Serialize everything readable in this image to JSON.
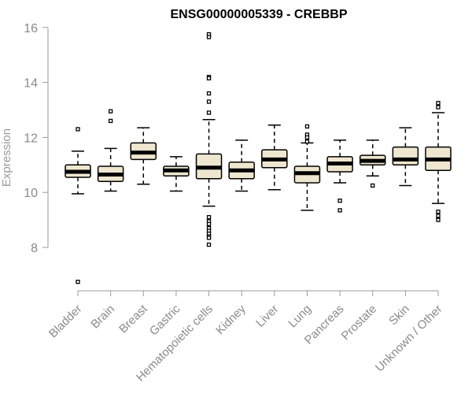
{
  "chart_data": {
    "type": "boxplot",
    "title": "ENSG00000005339 - CREBBP",
    "xlabel": "",
    "ylabel": "Expression",
    "ylim": [
      6.6,
      16.4
    ],
    "yticks": [
      8,
      10,
      12,
      14,
      16
    ],
    "colors": {
      "box_fill": "#efe6cf",
      "box_stroke": "#000000",
      "median": "#000000",
      "axis": "#9a9a9a",
      "text": "#8a8a8a"
    },
    "categories": [
      "Bladder",
      "Brain",
      "Breast",
      "Gastric",
      "Hematopoietic cells",
      "Kidney",
      "Liver",
      "Lung",
      "Pancreas",
      "Prostate",
      "Skin",
      "Unknown / Other"
    ],
    "boxes": [
      {
        "name": "Bladder",
        "whisker_low": 9.95,
        "q1": 10.55,
        "median": 10.75,
        "q3": 11.0,
        "whisker_high": 11.5,
        "outliers": [
          12.3,
          6.75
        ]
      },
      {
        "name": "Brain",
        "whisker_low": 10.05,
        "q1": 10.4,
        "median": 10.65,
        "q3": 10.95,
        "whisker_high": 11.6,
        "outliers": [
          12.95,
          12.6
        ]
      },
      {
        "name": "Breast",
        "whisker_low": 10.3,
        "q1": 11.2,
        "median": 11.45,
        "q3": 11.8,
        "whisker_high": 12.35,
        "outliers": []
      },
      {
        "name": "Gastric",
        "whisker_low": 10.05,
        "q1": 10.6,
        "median": 10.8,
        "q3": 10.95,
        "whisker_high": 11.3,
        "outliers": []
      },
      {
        "name": "Hematopoietic cells",
        "whisker_low": 9.5,
        "q1": 10.5,
        "median": 10.9,
        "q3": 11.4,
        "whisker_high": 12.65,
        "outliers": [
          15.75,
          15.65,
          14.2,
          14.15,
          13.6,
          13.3,
          12.9,
          9.1,
          8.95,
          8.85,
          8.7,
          8.6,
          8.5,
          8.4,
          8.35,
          8.1
        ]
      },
      {
        "name": "Kidney",
        "whisker_low": 10.05,
        "q1": 10.5,
        "median": 10.8,
        "q3": 11.1,
        "whisker_high": 11.9,
        "outliers": []
      },
      {
        "name": "Liver",
        "whisker_low": 10.1,
        "q1": 10.9,
        "median": 11.2,
        "q3": 11.55,
        "whisker_high": 12.45,
        "outliers": []
      },
      {
        "name": "Lung",
        "whisker_low": 9.35,
        "q1": 10.35,
        "median": 10.7,
        "q3": 10.95,
        "whisker_high": 11.8,
        "outliers": [
          12.4,
          12.1,
          12.0,
          11.85
        ]
      },
      {
        "name": "Pancreas",
        "whisker_low": 10.35,
        "q1": 10.75,
        "median": 11.05,
        "q3": 11.3,
        "whisker_high": 11.9,
        "outliers": [
          9.7,
          9.35
        ]
      },
      {
        "name": "Prostate",
        "whisker_low": 10.6,
        "q1": 11.0,
        "median": 11.15,
        "q3": 11.35,
        "whisker_high": 11.9,
        "outliers": [
          10.25
        ]
      },
      {
        "name": "Skin",
        "whisker_low": 10.25,
        "q1": 11.0,
        "median": 11.2,
        "q3": 11.65,
        "whisker_high": 12.35,
        "outliers": []
      },
      {
        "name": "Unknown / Other",
        "whisker_low": 9.6,
        "q1": 10.8,
        "median": 11.2,
        "q3": 11.65,
        "whisker_high": 12.9,
        "outliers": [
          13.25,
          13.1,
          9.3,
          9.15,
          9.0
        ]
      }
    ]
  }
}
